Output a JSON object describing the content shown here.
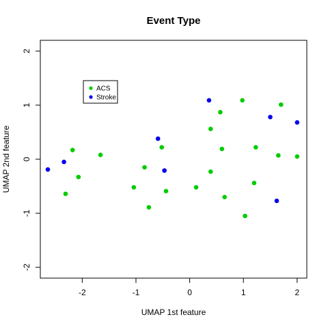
{
  "chart_data": {
    "type": "scatter",
    "title": "Event Type",
    "xlabel": "UMAP 1st feature",
    "ylabel": "UMAP 2nd feature",
    "xlim": [
      -2.78,
      2.18
    ],
    "ylim": [
      -2.2,
      2.2
    ],
    "xticks": [
      -2,
      -1,
      0,
      1,
      2
    ],
    "yticks": [
      -2,
      -1,
      0,
      1,
      2
    ],
    "xtick_labels": [
      "-2",
      "-1",
      "0",
      "1",
      "2"
    ],
    "ytick_labels": [
      "-2",
      "-1",
      "0",
      "1",
      "2"
    ],
    "grid": false,
    "legend_placement": "top-left",
    "series": [
      {
        "name": "ACS",
        "color": "#00CD00",
        "points": [
          {
            "x": -2.18,
            "y": 0.17
          },
          {
            "x": -2.07,
            "y": -0.33
          },
          {
            "x": -2.31,
            "y": -0.64
          },
          {
            "x": -1.66,
            "y": 0.08
          },
          {
            "x": -1.04,
            "y": -0.52
          },
          {
            "x": -0.84,
            "y": -0.15
          },
          {
            "x": -0.76,
            "y": -0.89
          },
          {
            "x": -0.52,
            "y": 0.22
          },
          {
            "x": -0.44,
            "y": -0.59
          },
          {
            "x": 0.12,
            "y": -0.52
          },
          {
            "x": 0.39,
            "y": 0.56
          },
          {
            "x": 0.39,
            "y": -0.23
          },
          {
            "x": 0.57,
            "y": 0.87
          },
          {
            "x": 0.6,
            "y": 0.19
          },
          {
            "x": 0.65,
            "y": -0.7
          },
          {
            "x": 0.98,
            "y": 1.09
          },
          {
            "x": 1.03,
            "y": -1.05
          },
          {
            "x": 1.2,
            "y": -0.44
          },
          {
            "x": 1.23,
            "y": 0.22
          },
          {
            "x": 1.65,
            "y": 0.07
          },
          {
            "x": 1.7,
            "y": 1.01
          },
          {
            "x": 2.0,
            "y": 0.05
          }
        ]
      },
      {
        "name": "Stroke",
        "color": "#0000EE",
        "points": [
          {
            "x": -2.64,
            "y": -0.19
          },
          {
            "x": -2.34,
            "y": -0.05
          },
          {
            "x": -0.59,
            "y": 0.38
          },
          {
            "x": -0.47,
            "y": -0.21
          },
          {
            "x": 0.36,
            "y": 1.09
          },
          {
            "x": 1.5,
            "y": 0.78
          },
          {
            "x": 1.62,
            "y": -0.77
          },
          {
            "x": 2.0,
            "y": 0.68
          }
        ]
      }
    ]
  }
}
